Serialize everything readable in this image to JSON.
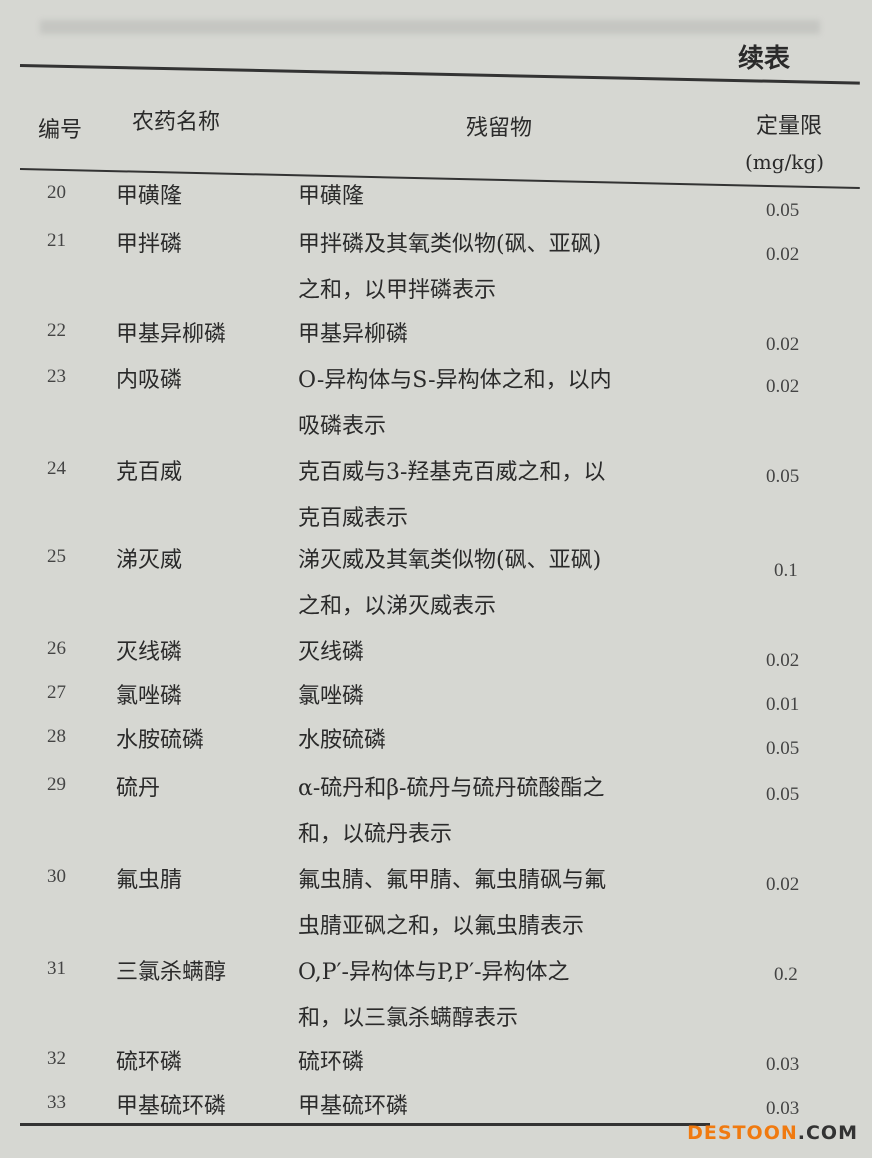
{
  "continued_label": "续表",
  "headers": {
    "num": "编号",
    "name": "农药名称",
    "residue": "残留物",
    "limit": "定量限",
    "unit": "(mg/kg)"
  },
  "rows": [
    {
      "num": "20",
      "name": "甲磺隆",
      "residue": [
        "甲磺隆"
      ],
      "limit": "0.05"
    },
    {
      "num": "21",
      "name": "甲拌磷",
      "residue": [
        "甲拌磷及其氧类似物(砜、亚砜)",
        "之和，以甲拌磷表示"
      ],
      "limit": "0.02"
    },
    {
      "num": "22",
      "name": "甲基异柳磷",
      "residue": [
        "甲基异柳磷"
      ],
      "limit": "0.02"
    },
    {
      "num": "23",
      "name": "内吸磷",
      "residue": [
        "O-异构体与S-异构体之和，以内",
        "吸磷表示"
      ],
      "limit": "0.02"
    },
    {
      "num": "24",
      "name": "克百威",
      "residue": [
        "克百威与3-羟基克百威之和，以",
        "克百威表示"
      ],
      "limit": "0.05"
    },
    {
      "num": "25",
      "name": "涕灭威",
      "residue": [
        "涕灭威及其氧类似物(砜、亚砜)",
        "之和，以涕灭威表示"
      ],
      "limit": "0.1"
    },
    {
      "num": "26",
      "name": "灭线磷",
      "residue": [
        "灭线磷"
      ],
      "limit": "0.02"
    },
    {
      "num": "27",
      "name": "氯唑磷",
      "residue": [
        "氯唑磷"
      ],
      "limit": "0.01"
    },
    {
      "num": "28",
      "name": "水胺硫磷",
      "residue": [
        "水胺硫磷"
      ],
      "limit": "0.05"
    },
    {
      "num": "29",
      "name": "硫丹",
      "residue": [
        "α-硫丹和β-硫丹与硫丹硫酸酯之",
        "和，以硫丹表示"
      ],
      "limit": "0.05"
    },
    {
      "num": "30",
      "name": "氟虫腈",
      "residue": [
        "氟虫腈、氟甲腈、氟虫腈砜与氟",
        "虫腈亚砜之和，以氟虫腈表示"
      ],
      "limit": "0.02"
    },
    {
      "num": "31",
      "name": "三氯杀螨醇",
      "residue": [
        "O,P′-异构体与P,P′-异构体之",
        "和，以三氯杀螨醇表示"
      ],
      "limit": "0.2"
    },
    {
      "num": "32",
      "name": "硫环磷",
      "residue": [
        "硫环磷"
      ],
      "limit": "0.03"
    },
    {
      "num": "33",
      "name": "甲基硫环磷",
      "residue": [
        "甲基硫环磷"
      ],
      "limit": "0.03"
    }
  ],
  "watermark": {
    "brand": "DESTOON",
    "suffix": ".COM",
    "color": "#f07a10"
  }
}
